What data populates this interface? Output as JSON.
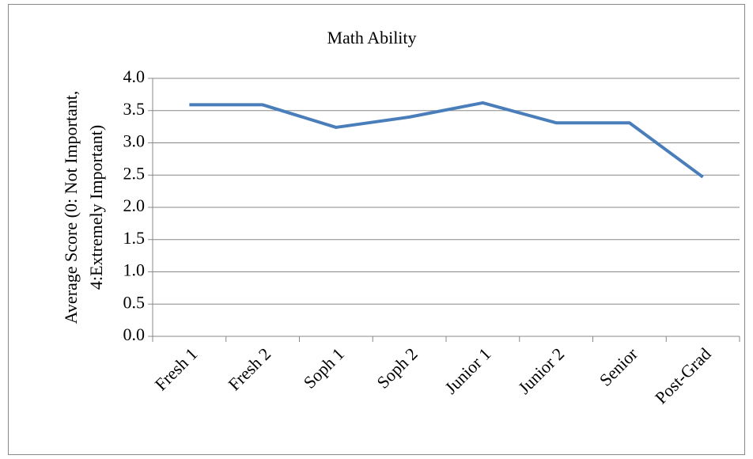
{
  "chart_data": {
    "type": "line",
    "title": "Math Ability",
    "y_label": [
      "Average Score (0: Not Important,",
      "4:Extremely Important)"
    ],
    "categories": [
      "Fresh 1",
      "Fresh 2",
      "Soph 1",
      "Soph 2",
      "Junior 1",
      "Junior 2",
      "Senior",
      "Post-Grad"
    ],
    "series": [
      {
        "name": "Math Ability",
        "color": "#4a7ebb",
        "values": [
          3.59,
          3.59,
          3.24,
          3.4,
          3.62,
          3.31,
          3.31,
          2.47
        ]
      }
    ],
    "ylim": [
      0,
      4
    ],
    "yticks": [
      {
        "value": 0,
        "label": "0.0"
      },
      {
        "value": 0.5,
        "label": "0.5"
      },
      {
        "value": 1,
        "label": "1.0"
      },
      {
        "value": 1.5,
        "label": "1.5"
      },
      {
        "value": 2,
        "label": "2.0"
      },
      {
        "value": 2.5,
        "label": "2.5"
      },
      {
        "value": 3,
        "label": "3.0"
      },
      {
        "value": 3.5,
        "label": "3.5"
      },
      {
        "value": 4,
        "label": "4.0"
      }
    ],
    "grid": true
  }
}
